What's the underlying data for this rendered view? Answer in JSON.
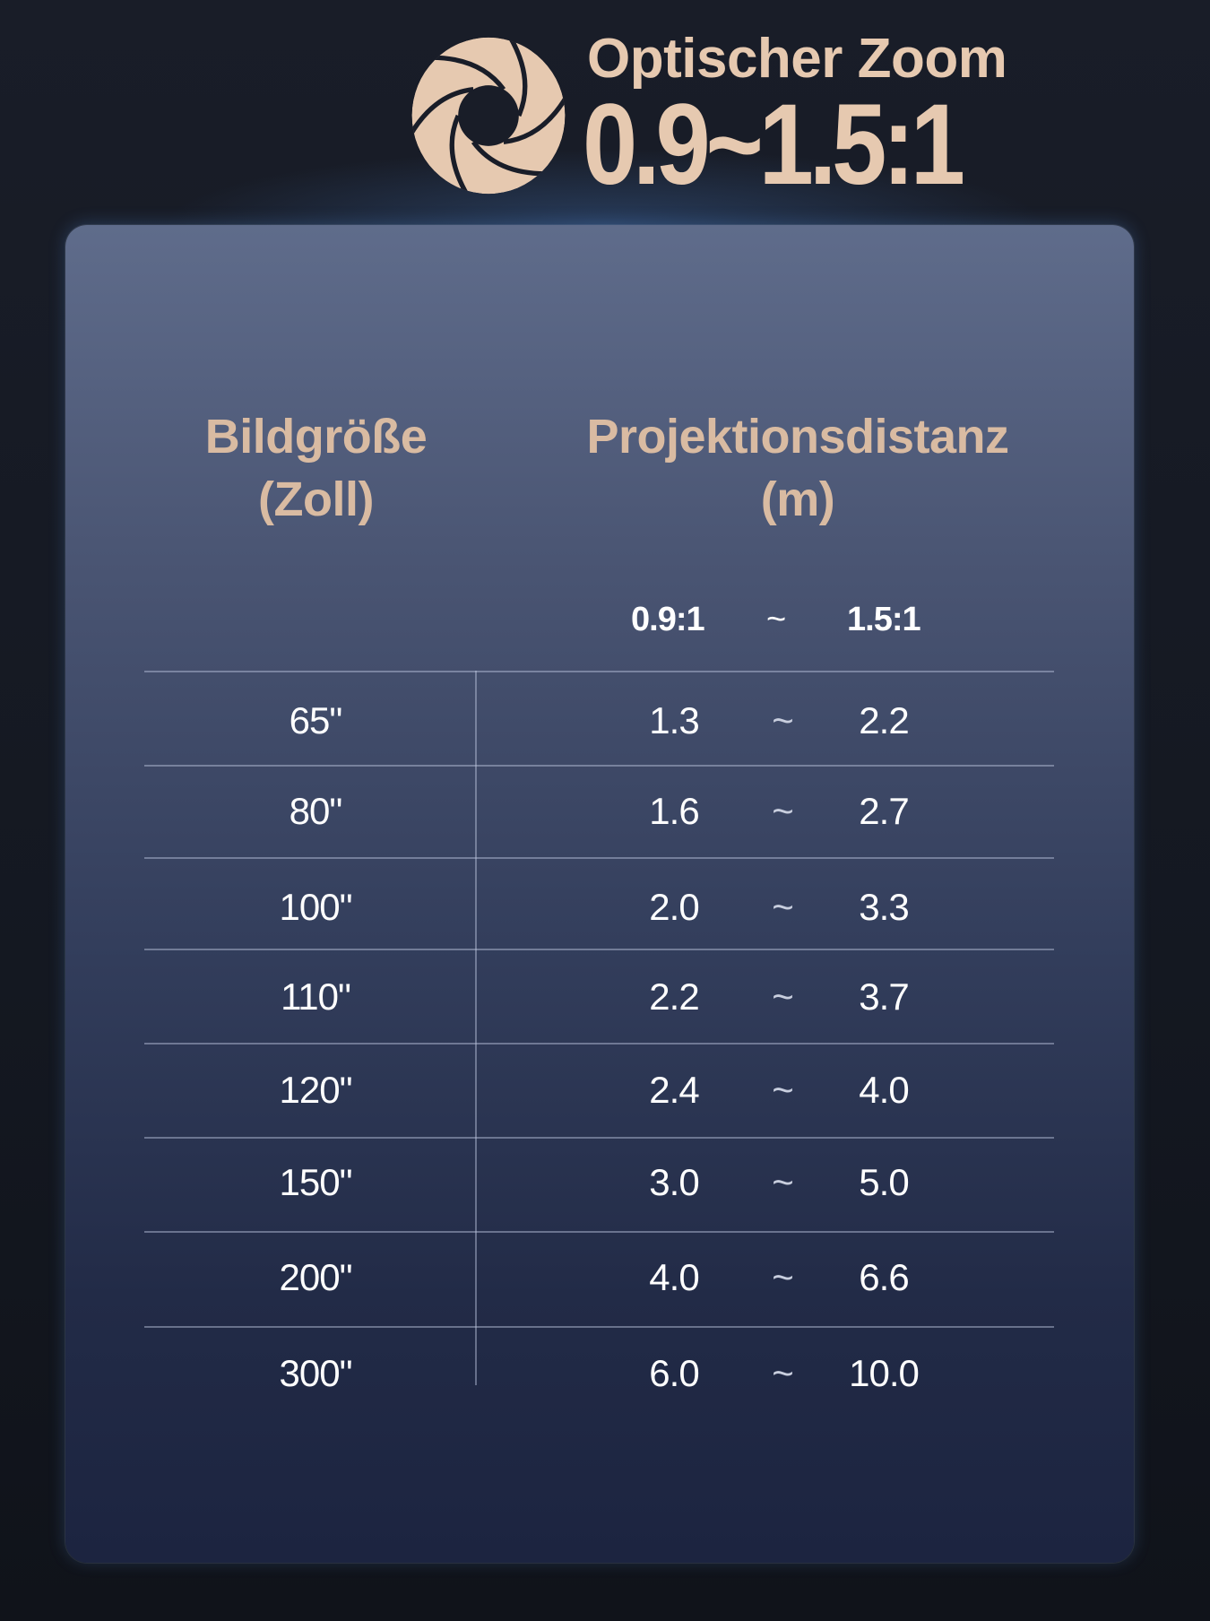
{
  "header": {
    "icon": "aperture-icon",
    "title_line1": "Optischer Zoom",
    "title_line2": "0.9~1.5:1",
    "accent_color": "#e6c9b0"
  },
  "table": {
    "col1_header": "Bildgröße",
    "col1_unit": "(Zoll)",
    "col2_header": "Projektionsdistanz",
    "col2_unit": "(m)",
    "ratio_min": "0.9:1",
    "ratio_sep": "~",
    "ratio_max": "1.5:1",
    "rows": [
      {
        "size": "65\"",
        "min": "1.3",
        "sep": "~",
        "max": "2.2"
      },
      {
        "size": "80\"",
        "min": "1.6",
        "sep": "~",
        "max": "2.7"
      },
      {
        "size": "100\"",
        "min": "2.0",
        "sep": "~",
        "max": "3.3"
      },
      {
        "size": "110\"",
        "min": "2.2",
        "sep": "~",
        "max": "3.7"
      },
      {
        "size": "120\"",
        "min": "2.4",
        "sep": "~",
        "max": "4.0"
      },
      {
        "size": "150\"",
        "min": "3.0",
        "sep": "~",
        "max": "5.0"
      },
      {
        "size": "200\"",
        "min": "4.0",
        "sep": "~",
        "max": "6.6"
      },
      {
        "size": "300\"",
        "min": "6.0",
        "sep": "~",
        "max": "10.0"
      }
    ]
  }
}
